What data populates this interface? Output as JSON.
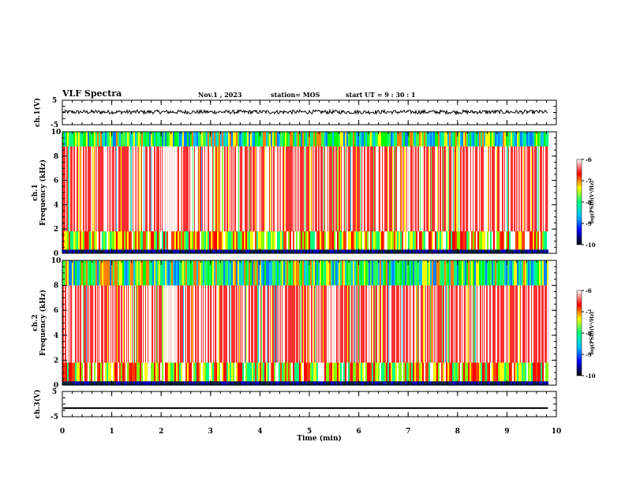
{
  "header": {
    "title": "VLF Spectra",
    "date": "Nov.1  , 2023",
    "station": "station= MOS",
    "start": "start  UT  =   9  : 30 : 1"
  },
  "chart_data": [
    {
      "type": "line",
      "name": "ch1-waveform",
      "ylabel": "ch.1(V)",
      "ylim": [
        -5,
        5
      ],
      "y_ticks": [
        "5",
        "-5"
      ],
      "xlim": [
        0,
        10
      ],
      "description_level": 0.2
    },
    {
      "type": "heatmap",
      "name": "ch1-spectrogram",
      "ylabel": "ch.1\nFrequency (kHz)",
      "ylabel_line1": "ch.1",
      "ylabel_line2": "Frequency (kHz)",
      "ylim": [
        0,
        10
      ],
      "y_ticks": [
        "0",
        "2",
        "4",
        "6",
        "8",
        "10"
      ],
      "xlim": [
        0,
        9.83
      ]
    },
    {
      "type": "heatmap",
      "name": "ch2-spectrogram",
      "ylabel_line1": "ch.2",
      "ylabel_line2": "Frequency (kHz)",
      "ylim": [
        0,
        10
      ],
      "y_ticks": [
        "0",
        "2",
        "4",
        "6",
        "8",
        "10"
      ],
      "xlim": [
        0,
        9.83
      ]
    },
    {
      "type": "line",
      "name": "ch3-waveform",
      "ylabel": "ch.3(V)",
      "ylim": [
        -5,
        5
      ],
      "y_ticks": [
        "5",
        "-5"
      ],
      "xlim": [
        0,
        10
      ],
      "level": -1.6
    }
  ],
  "x_axis": {
    "label": "Time  (min)",
    "range": [
      0,
      10
    ],
    "ticks": [
      "0",
      "1",
      "2",
      "3",
      "4",
      "5",
      "6",
      "7",
      "8",
      "9",
      "10"
    ]
  },
  "colorbars": [
    {
      "name": "colorbar-ch1",
      "label": "log(PSD)(V²/Hz)",
      "range": [
        -10,
        -6
      ],
      "ticks": [
        "-6",
        "-7",
        "-8",
        "-9",
        "-10"
      ],
      "colors": [
        "#000000",
        "#0000ff",
        "#00c0ff",
        "#00ff80",
        "#ffff00",
        "#ff0000",
        "#ffffff"
      ]
    },
    {
      "name": "colorbar-ch2",
      "label": "log(PSD)(V²/Hz)",
      "range": [
        -10,
        -6
      ],
      "ticks": [
        "-6",
        "-7",
        "-8",
        "-9",
        "-10"
      ],
      "colors": [
        "#000000",
        "#0000ff",
        "#00c0ff",
        "#00ff80",
        "#ffff00",
        "#ff0000",
        "#ffffff"
      ]
    }
  ]
}
